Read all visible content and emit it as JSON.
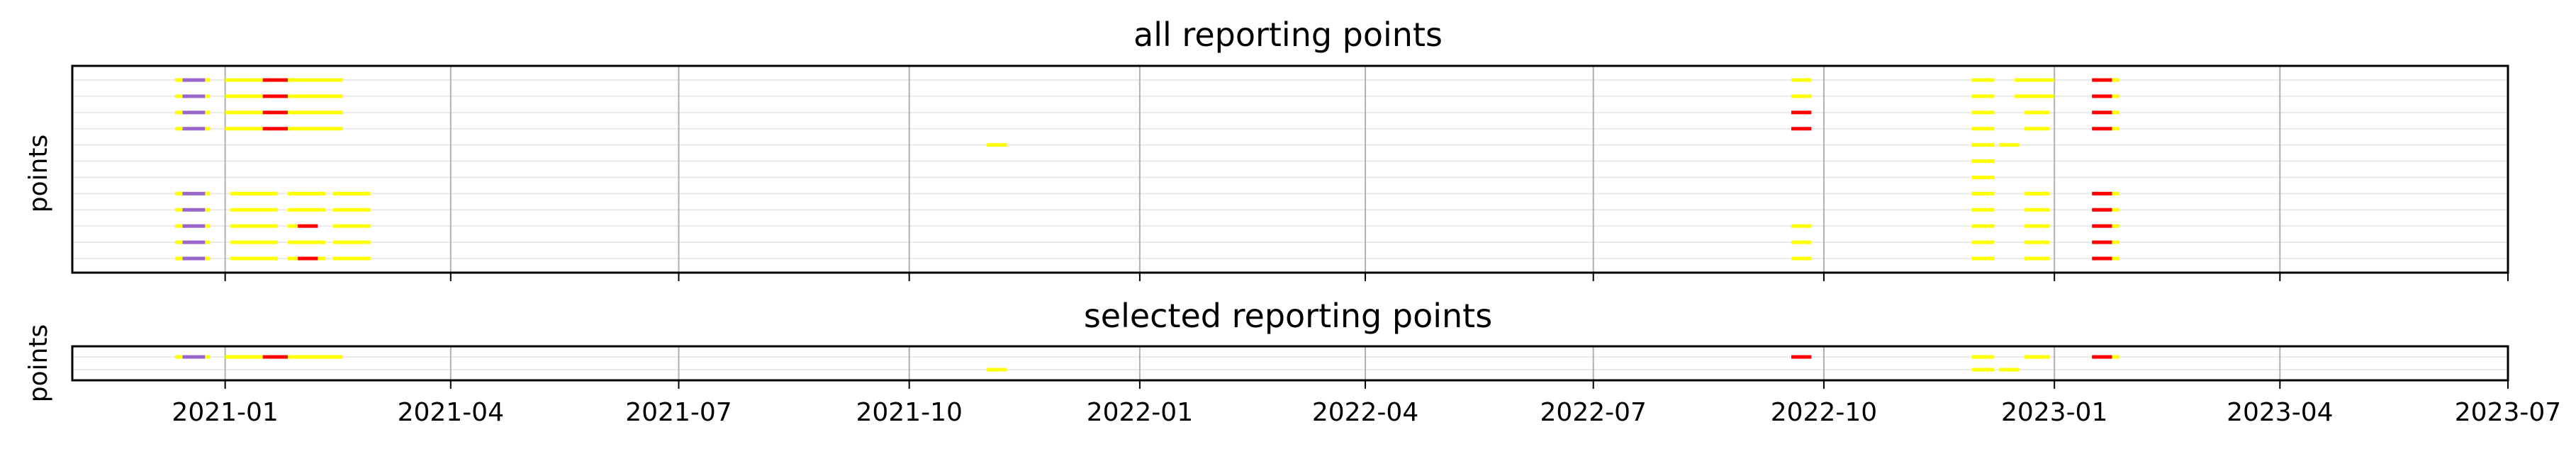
{
  "chart_data": [
    {
      "type": "timeline",
      "title": "all reporting points",
      "ylabel": "points",
      "xlim": [
        "2020-11-01",
        "2023-07-01"
      ],
      "xticks": [
        "2021-01",
        "2021-04",
        "2021-07",
        "2021-10",
        "2022-01",
        "2022-04",
        "2022-07",
        "2022-10",
        "2023-01",
        "2023-04",
        "2023-07"
      ],
      "grid": {
        "horizontal": true,
        "vertical_major": true
      },
      "row_count": 12,
      "colors": {
        "yellow": "#ffff00",
        "red": "#ff0000",
        "purple": "#9966cc"
      },
      "series": [
        {
          "row": 0,
          "segments": [
            [
              "2020-12-12",
              "2020-12-15",
              "yellow"
            ],
            [
              "2020-12-15",
              "2020-12-24",
              "purple"
            ],
            [
              "2020-12-24",
              "2020-12-26",
              "yellow"
            ],
            [
              "2021-01-01",
              "2021-01-16",
              "yellow"
            ],
            [
              "2021-01-16",
              "2021-01-26",
              "red"
            ],
            [
              "2021-01-26",
              "2021-02-17",
              "yellow"
            ],
            [
              "2022-09-18",
              "2022-09-26",
              "yellow"
            ],
            [
              "2022-11-29",
              "2022-12-08",
              "yellow"
            ],
            [
              "2022-12-16",
              "2023-01-01",
              "yellow"
            ],
            [
              "2023-01-16",
              "2023-01-24",
              "red"
            ],
            [
              "2023-01-24",
              "2023-01-27",
              "yellow"
            ]
          ]
        },
        {
          "row": 1,
          "segments": [
            [
              "2020-12-12",
              "2020-12-15",
              "yellow"
            ],
            [
              "2020-12-15",
              "2020-12-24",
              "purple"
            ],
            [
              "2020-12-24",
              "2020-12-26",
              "yellow"
            ],
            [
              "2021-01-01",
              "2021-01-16",
              "yellow"
            ],
            [
              "2021-01-16",
              "2021-01-26",
              "red"
            ],
            [
              "2021-01-26",
              "2021-02-17",
              "yellow"
            ],
            [
              "2022-09-18",
              "2022-09-26",
              "yellow"
            ],
            [
              "2022-11-29",
              "2022-12-08",
              "yellow"
            ],
            [
              "2022-12-16",
              "2023-01-01",
              "yellow"
            ],
            [
              "2023-01-16",
              "2023-01-24",
              "red"
            ],
            [
              "2023-01-24",
              "2023-01-27",
              "yellow"
            ]
          ]
        },
        {
          "row": 2,
          "segments": [
            [
              "2020-12-12",
              "2020-12-15",
              "yellow"
            ],
            [
              "2020-12-15",
              "2020-12-24",
              "purple"
            ],
            [
              "2020-12-24",
              "2020-12-26",
              "yellow"
            ],
            [
              "2021-01-01",
              "2021-01-16",
              "yellow"
            ],
            [
              "2021-01-16",
              "2021-01-26",
              "red"
            ],
            [
              "2021-01-26",
              "2021-02-17",
              "yellow"
            ],
            [
              "2022-09-18",
              "2022-09-26",
              "red"
            ],
            [
              "2022-11-29",
              "2022-12-08",
              "yellow"
            ],
            [
              "2022-12-20",
              "2022-12-30",
              "yellow"
            ],
            [
              "2023-01-16",
              "2023-01-24",
              "red"
            ],
            [
              "2023-01-24",
              "2023-01-27",
              "yellow"
            ]
          ]
        },
        {
          "row": 3,
          "segments": [
            [
              "2020-12-12",
              "2020-12-15",
              "yellow"
            ],
            [
              "2020-12-15",
              "2020-12-24",
              "purple"
            ],
            [
              "2020-12-24",
              "2020-12-26",
              "yellow"
            ],
            [
              "2021-01-01",
              "2021-01-16",
              "yellow"
            ],
            [
              "2021-01-16",
              "2021-01-26",
              "red"
            ],
            [
              "2021-01-26",
              "2021-02-17",
              "yellow"
            ],
            [
              "2022-09-18",
              "2022-09-26",
              "red"
            ],
            [
              "2022-11-29",
              "2022-12-08",
              "yellow"
            ],
            [
              "2022-12-20",
              "2022-12-30",
              "yellow"
            ],
            [
              "2023-01-16",
              "2023-01-24",
              "red"
            ],
            [
              "2023-01-24",
              "2023-01-27",
              "yellow"
            ]
          ]
        },
        {
          "row": 4,
          "segments": [
            [
              "2021-11-01",
              "2021-11-09",
              "yellow"
            ],
            [
              "2022-11-29",
              "2022-12-08",
              "yellow"
            ],
            [
              "2022-12-10",
              "2022-12-18",
              "yellow"
            ]
          ]
        },
        {
          "row": 5,
          "segments": [
            [
              "2022-11-29",
              "2022-12-08",
              "yellow"
            ]
          ]
        },
        {
          "row": 6,
          "segments": [
            [
              "2022-11-29",
              "2022-12-08",
              "yellow"
            ]
          ]
        },
        {
          "row": 7,
          "segments": [
            [
              "2020-12-12",
              "2020-12-15",
              "yellow"
            ],
            [
              "2020-12-15",
              "2020-12-24",
              "purple"
            ],
            [
              "2020-12-24",
              "2020-12-26",
              "yellow"
            ],
            [
              "2021-01-03",
              "2021-01-22",
              "yellow"
            ],
            [
              "2021-01-26",
              "2021-02-10",
              "yellow"
            ],
            [
              "2021-02-13",
              "2021-02-28",
              "yellow"
            ],
            [
              "2022-11-29",
              "2022-12-08",
              "yellow"
            ],
            [
              "2022-12-20",
              "2022-12-30",
              "yellow"
            ],
            [
              "2023-01-16",
              "2023-01-24",
              "red"
            ],
            [
              "2023-01-24",
              "2023-01-27",
              "yellow"
            ]
          ]
        },
        {
          "row": 8,
          "segments": [
            [
              "2020-12-12",
              "2020-12-15",
              "yellow"
            ],
            [
              "2020-12-15",
              "2020-12-24",
              "purple"
            ],
            [
              "2020-12-24",
              "2020-12-26",
              "yellow"
            ],
            [
              "2021-01-03",
              "2021-01-22",
              "yellow"
            ],
            [
              "2021-01-26",
              "2021-02-10",
              "yellow"
            ],
            [
              "2021-02-13",
              "2021-02-28",
              "yellow"
            ],
            [
              "2022-11-29",
              "2022-12-08",
              "yellow"
            ],
            [
              "2022-12-20",
              "2022-12-30",
              "yellow"
            ],
            [
              "2023-01-16",
              "2023-01-24",
              "red"
            ],
            [
              "2023-01-24",
              "2023-01-27",
              "yellow"
            ]
          ]
        },
        {
          "row": 9,
          "segments": [
            [
              "2020-12-12",
              "2020-12-15",
              "yellow"
            ],
            [
              "2020-12-15",
              "2020-12-24",
              "purple"
            ],
            [
              "2020-12-24",
              "2020-12-26",
              "yellow"
            ],
            [
              "2021-01-03",
              "2021-01-22",
              "yellow"
            ],
            [
              "2021-01-26",
              "2021-01-30",
              "yellow"
            ],
            [
              "2021-01-30",
              "2021-02-07",
              "red"
            ],
            [
              "2021-02-13",
              "2021-02-28",
              "yellow"
            ],
            [
              "2022-09-18",
              "2022-09-26",
              "yellow"
            ],
            [
              "2022-11-29",
              "2022-12-08",
              "yellow"
            ],
            [
              "2022-12-20",
              "2022-12-30",
              "yellow"
            ],
            [
              "2023-01-16",
              "2023-01-24",
              "red"
            ],
            [
              "2023-01-24",
              "2023-01-27",
              "yellow"
            ]
          ]
        },
        {
          "row": 10,
          "segments": [
            [
              "2020-12-12",
              "2020-12-15",
              "yellow"
            ],
            [
              "2020-12-15",
              "2020-12-24",
              "purple"
            ],
            [
              "2020-12-24",
              "2020-12-26",
              "yellow"
            ],
            [
              "2021-01-03",
              "2021-01-22",
              "yellow"
            ],
            [
              "2021-01-26",
              "2021-02-10",
              "yellow"
            ],
            [
              "2021-02-13",
              "2021-02-28",
              "yellow"
            ],
            [
              "2022-09-18",
              "2022-09-26",
              "yellow"
            ],
            [
              "2022-11-29",
              "2022-12-08",
              "yellow"
            ],
            [
              "2022-12-20",
              "2022-12-30",
              "yellow"
            ],
            [
              "2023-01-16",
              "2023-01-24",
              "red"
            ],
            [
              "2023-01-24",
              "2023-01-27",
              "yellow"
            ]
          ]
        },
        {
          "row": 11,
          "segments": [
            [
              "2020-12-12",
              "2020-12-15",
              "yellow"
            ],
            [
              "2020-12-15",
              "2020-12-24",
              "purple"
            ],
            [
              "2020-12-24",
              "2020-12-26",
              "yellow"
            ],
            [
              "2021-01-03",
              "2021-01-22",
              "yellow"
            ],
            [
              "2021-01-26",
              "2021-01-30",
              "yellow"
            ],
            [
              "2021-01-30",
              "2021-02-07",
              "red"
            ],
            [
              "2021-02-07",
              "2021-02-10",
              "yellow"
            ],
            [
              "2021-02-13",
              "2021-02-28",
              "yellow"
            ],
            [
              "2022-09-18",
              "2022-09-26",
              "yellow"
            ],
            [
              "2022-11-29",
              "2022-12-08",
              "yellow"
            ],
            [
              "2022-12-20",
              "2022-12-30",
              "yellow"
            ],
            [
              "2023-01-16",
              "2023-01-24",
              "red"
            ],
            [
              "2023-01-24",
              "2023-01-27",
              "yellow"
            ]
          ]
        }
      ]
    },
    {
      "type": "timeline",
      "title": "selected reporting points",
      "ylabel": "points",
      "xlim": [
        "2020-11-01",
        "2023-07-01"
      ],
      "xticks": [
        "2021-01",
        "2021-04",
        "2021-07",
        "2021-10",
        "2022-01",
        "2022-04",
        "2022-07",
        "2022-10",
        "2023-01",
        "2023-04",
        "2023-07"
      ],
      "grid": {
        "horizontal": true,
        "vertical_major": true
      },
      "row_count": 2,
      "colors": {
        "yellow": "#ffff00",
        "red": "#ff0000",
        "purple": "#9966cc"
      },
      "series": [
        {
          "row": 0,
          "segments": [
            [
              "2020-12-12",
              "2020-12-15",
              "yellow"
            ],
            [
              "2020-12-15",
              "2020-12-24",
              "purple"
            ],
            [
              "2020-12-24",
              "2020-12-26",
              "yellow"
            ],
            [
              "2021-01-01",
              "2021-01-16",
              "yellow"
            ],
            [
              "2021-01-16",
              "2021-01-26",
              "red"
            ],
            [
              "2021-01-26",
              "2021-02-17",
              "yellow"
            ],
            [
              "2022-09-18",
              "2022-09-26",
              "red"
            ],
            [
              "2022-11-29",
              "2022-12-08",
              "yellow"
            ],
            [
              "2022-12-20",
              "2022-12-30",
              "yellow"
            ],
            [
              "2023-01-16",
              "2023-01-24",
              "red"
            ],
            [
              "2023-01-24",
              "2023-01-27",
              "yellow"
            ]
          ]
        },
        {
          "row": 1,
          "segments": [
            [
              "2021-11-01",
              "2021-11-09",
              "yellow"
            ],
            [
              "2022-11-29",
              "2022-12-08",
              "yellow"
            ],
            [
              "2022-12-10",
              "2022-12-18",
              "yellow"
            ]
          ]
        }
      ]
    }
  ]
}
